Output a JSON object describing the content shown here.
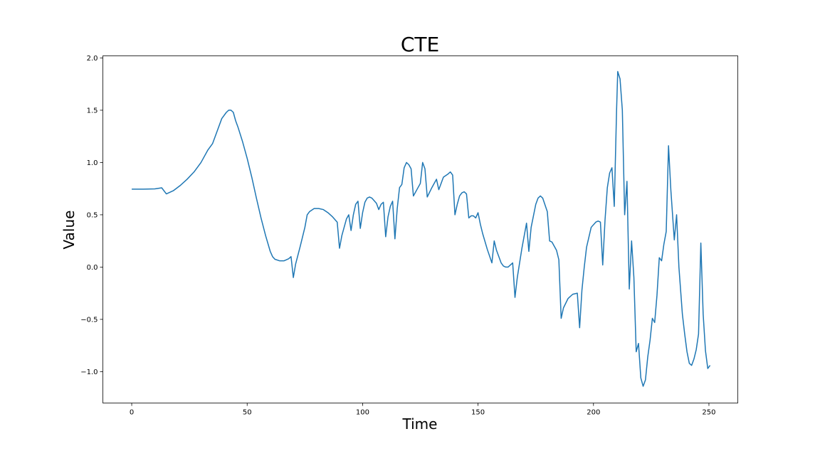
{
  "chart_data": {
    "type": "line",
    "title": "CTE",
    "xlabel": "Time",
    "ylabel": "Value",
    "xlim": [
      -12.5,
      262.5
    ],
    "ylim": [
      -1.3,
      2.02
    ],
    "xticks": [
      0,
      50,
      100,
      150,
      200,
      250
    ],
    "yticks": [
      -1.0,
      -0.5,
      0.0,
      0.5,
      1.0,
      1.5,
      2.0
    ],
    "xtick_labels": [
      "0",
      "50",
      "100",
      "150",
      "200",
      "250"
    ],
    "ytick_labels": [
      "−1.0",
      "−0.5",
      "0.0",
      "0.5",
      "1.0",
      "1.5",
      "2.0"
    ],
    "grid": false,
    "series": [
      {
        "color": "#1f77b4",
        "points": [
          [
            0,
            0.745
          ],
          [
            5,
            0.745
          ],
          [
            10,
            0.748
          ],
          [
            13,
            0.758
          ],
          [
            15,
            0.7
          ],
          [
            18,
            0.73
          ],
          [
            21,
            0.78
          ],
          [
            24,
            0.84
          ],
          [
            27,
            0.91
          ],
          [
            30,
            1.0
          ],
          [
            33,
            1.12
          ],
          [
            35,
            1.18
          ],
          [
            37,
            1.3
          ],
          [
            39,
            1.42
          ],
          [
            41,
            1.48
          ],
          [
            42,
            1.5
          ],
          [
            43,
            1.5
          ],
          [
            44,
            1.48
          ],
          [
            45,
            1.4
          ],
          [
            46,
            1.34
          ],
          [
            48,
            1.2
          ],
          [
            50,
            1.04
          ],
          [
            52,
            0.86
          ],
          [
            54,
            0.66
          ],
          [
            56,
            0.47
          ],
          [
            58,
            0.3
          ],
          [
            60,
            0.15
          ],
          [
            61,
            0.1
          ],
          [
            62,
            0.075
          ],
          [
            64,
            0.06
          ],
          [
            66,
            0.06
          ],
          [
            68,
            0.08
          ],
          [
            69,
            0.1
          ],
          [
            70,
            -0.1
          ],
          [
            71,
            0.03
          ],
          [
            73,
            0.2
          ],
          [
            75,
            0.38
          ],
          [
            76,
            0.5
          ],
          [
            77,
            0.53
          ],
          [
            79,
            0.56
          ],
          [
            81,
            0.56
          ],
          [
            83,
            0.55
          ],
          [
            85,
            0.52
          ],
          [
            87,
            0.48
          ],
          [
            89,
            0.43
          ],
          [
            90,
            0.18
          ],
          [
            91,
            0.3
          ],
          [
            93,
            0.46
          ],
          [
            94,
            0.5
          ],
          [
            95,
            0.35
          ],
          [
            96,
            0.5
          ],
          [
            97,
            0.6
          ],
          [
            98,
            0.63
          ],
          [
            99,
            0.37
          ],
          [
            100,
            0.52
          ],
          [
            101,
            0.62
          ],
          [
            102,
            0.66
          ],
          [
            103,
            0.67
          ],
          [
            104,
            0.66
          ],
          [
            106,
            0.61
          ],
          [
            107,
            0.55
          ],
          [
            108,
            0.6
          ],
          [
            109,
            0.62
          ],
          [
            110,
            0.29
          ],
          [
            111,
            0.48
          ],
          [
            112,
            0.58
          ],
          [
            113,
            0.63
          ],
          [
            114,
            0.27
          ],
          [
            115,
            0.56
          ],
          [
            116,
            0.76
          ],
          [
            117,
            0.79
          ],
          [
            118,
            0.95
          ],
          [
            119,
            1.0
          ],
          [
            120,
            0.98
          ],
          [
            121,
            0.94
          ],
          [
            122,
            0.68
          ],
          [
            124,
            0.76
          ],
          [
            125,
            0.8
          ],
          [
            126,
            1.0
          ],
          [
            127,
            0.94
          ],
          [
            128,
            0.67
          ],
          [
            130,
            0.76
          ],
          [
            132,
            0.84
          ],
          [
            133,
            0.74
          ],
          [
            135,
            0.86
          ],
          [
            137,
            0.89
          ],
          [
            138,
            0.91
          ],
          [
            139,
            0.88
          ],
          [
            140,
            0.5
          ],
          [
            141,
            0.6
          ],
          [
            142,
            0.68
          ],
          [
            143,
            0.71
          ],
          [
            144,
            0.72
          ],
          [
            145,
            0.7
          ],
          [
            146,
            0.47
          ],
          [
            147,
            0.49
          ],
          [
            148,
            0.49
          ],
          [
            149,
            0.47
          ],
          [
            150,
            0.52
          ],
          [
            151,
            0.41
          ],
          [
            152,
            0.32
          ],
          [
            154,
            0.17
          ],
          [
            156,
            0.04
          ],
          [
            157,
            0.25
          ],
          [
            158,
            0.16
          ],
          [
            160,
            0.04
          ],
          [
            161,
            0.01
          ],
          [
            162,
            0.0
          ],
          [
            163,
            0.0
          ],
          [
            165,
            0.04
          ],
          [
            166,
            -0.29
          ],
          [
            167,
            -0.1
          ],
          [
            169,
            0.18
          ],
          [
            171,
            0.42
          ],
          [
            172,
            0.15
          ],
          [
            173,
            0.38
          ],
          [
            175,
            0.6
          ],
          [
            176,
            0.66
          ],
          [
            177,
            0.68
          ],
          [
            178,
            0.66
          ],
          [
            180,
            0.53
          ],
          [
            181,
            0.25
          ],
          [
            182,
            0.24
          ],
          [
            184,
            0.16
          ],
          [
            185,
            0.07
          ],
          [
            186,
            -0.49
          ],
          [
            187,
            -0.39
          ],
          [
            189,
            -0.3
          ],
          [
            191,
            -0.26
          ],
          [
            193,
            -0.25
          ],
          [
            194,
            -0.58
          ],
          [
            195,
            -0.22
          ],
          [
            196,
            0.0
          ],
          [
            197,
            0.19
          ],
          [
            199,
            0.38
          ],
          [
            201,
            0.43
          ],
          [
            202,
            0.44
          ],
          [
            203,
            0.43
          ],
          [
            204,
            0.02
          ],
          [
            205,
            0.45
          ],
          [
            206,
            0.76
          ],
          [
            207,
            0.9
          ],
          [
            208,
            0.95
          ],
          [
            209,
            0.58
          ],
          [
            210,
            1.5
          ],
          [
            210.5,
            1.87
          ],
          [
            211.5,
            1.8
          ],
          [
            212.5,
            1.5
          ],
          [
            213.5,
            0.5
          ],
          [
            214.5,
            0.82
          ],
          [
            215.5,
            -0.21
          ],
          [
            216.5,
            0.25
          ],
          [
            217.5,
            -0.1
          ],
          [
            218.5,
            -0.81
          ],
          [
            219.5,
            -0.73
          ],
          [
            220.5,
            -1.06
          ],
          [
            221.5,
            -1.14
          ],
          [
            222.5,
            -1.08
          ],
          [
            223.5,
            -0.86
          ],
          [
            224.5,
            -0.7
          ],
          [
            225.5,
            -0.49
          ],
          [
            226.5,
            -0.53
          ],
          [
            227.5,
            -0.27
          ],
          [
            228.5,
            0.09
          ],
          [
            229.5,
            0.06
          ],
          [
            230.5,
            0.22
          ],
          [
            231.5,
            0.34
          ],
          [
            232.5,
            1.16
          ],
          [
            233.5,
            0.74
          ],
          [
            235,
            0.26
          ],
          [
            236,
            0.5
          ],
          [
            237,
            0.0
          ],
          [
            238.5,
            -0.45
          ],
          [
            239.5,
            -0.64
          ],
          [
            240.5,
            -0.81
          ],
          [
            241.5,
            -0.92
          ],
          [
            242.5,
            -0.94
          ],
          [
            243.5,
            -0.88
          ],
          [
            244.5,
            -0.79
          ],
          [
            245.5,
            -0.64
          ],
          [
            246.5,
            0.23
          ],
          [
            247.5,
            -0.45
          ],
          [
            248.5,
            -0.8
          ],
          [
            249.5,
            -0.97
          ],
          [
            250.5,
            -0.94
          ]
        ]
      }
    ]
  }
}
